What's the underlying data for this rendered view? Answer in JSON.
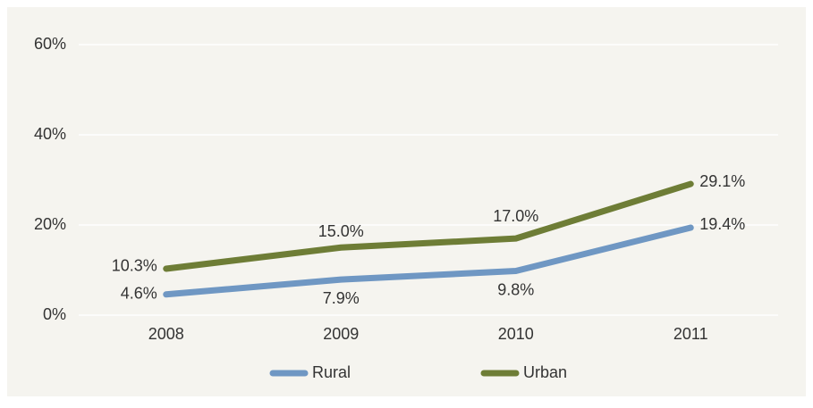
{
  "chart_data": {
    "type": "line",
    "categories": [
      "2008",
      "2009",
      "2010",
      "2011"
    ],
    "series": [
      {
        "name": "Rural",
        "color": "#6f97c3",
        "values": [
          4.6,
          7.9,
          9.8,
          19.4
        ],
        "value_labels": [
          "4.6%",
          "7.9%",
          "9.8%",
          "19.4%"
        ]
      },
      {
        "name": "Urban",
        "color": "#6e7d36",
        "values": [
          10.3,
          15.0,
          17.0,
          29.1
        ],
        "value_labels": [
          "10.3%",
          "15.0%",
          "17.0%",
          "29.1%"
        ]
      }
    ],
    "ylim": [
      0,
      60
    ],
    "yticks": [
      {
        "value": 0,
        "label": "0%"
      },
      {
        "value": 20,
        "label": "20%"
      },
      {
        "value": 40,
        "label": "40%"
      },
      {
        "value": 60,
        "label": "60%"
      }
    ],
    "grid": true,
    "legend": "bottom"
  }
}
